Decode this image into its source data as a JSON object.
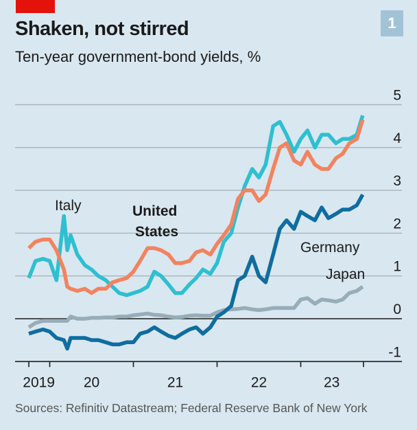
{
  "header": {
    "title": "Shaken, not stirred",
    "subtitle": "Ten-year government-bond yields, %",
    "chart_number": "1"
  },
  "footer": {
    "source": "Sources: Refinitiv Datastream; Federal Reserve Bank of New York"
  },
  "colors": {
    "background": "#d9e7f0",
    "tag": "#e3120b",
    "badge": "#a2c3d6",
    "grid": "#a9b4bb",
    "zero_line": "#1a1a1a",
    "united_states": "#f2835f",
    "italy": "#2ebfd1",
    "germany": "#0f6d9f",
    "japan": "#97adb8"
  },
  "chart_data": {
    "type": "line",
    "title": "Shaken, not stirred",
    "subtitle": "Ten-year government-bond yields, %",
    "xlabel": "",
    "ylabel": "%",
    "ylim": [
      -1,
      5
    ],
    "yticks": [
      5,
      4,
      3,
      2,
      1,
      0,
      -1
    ],
    "xlim": [
      2019.75,
      2023.8
    ],
    "xticks": [
      2019.75,
      2020.0,
      2021.0,
      2022.0,
      2023.0,
      2023.75
    ],
    "xtick_labels": [
      {
        "label": "2019",
        "at": 2019.87
      },
      {
        "label": "20",
        "at": 2020.5
      },
      {
        "label": "21",
        "at": 2021.5
      },
      {
        "label": "22",
        "at": 2022.5
      },
      {
        "label": "23",
        "at": 2023.37
      }
    ],
    "grid": true,
    "legend": "inline labels",
    "x": [
      2019.75,
      2019.83,
      2019.92,
      2020.0,
      2020.08,
      2020.17,
      2020.21,
      2020.25,
      2020.33,
      2020.42,
      2020.5,
      2020.58,
      2020.67,
      2020.75,
      2020.83,
      2020.92,
      2021.0,
      2021.08,
      2021.17,
      2021.25,
      2021.33,
      2021.42,
      2021.5,
      2021.58,
      2021.67,
      2021.75,
      2021.83,
      2021.92,
      2022.0,
      2022.08,
      2022.17,
      2022.25,
      2022.33,
      2022.42,
      2022.5,
      2022.58,
      2022.67,
      2022.75,
      2022.83,
      2022.92,
      2023.0,
      2023.08,
      2023.17,
      2023.25,
      2023.33,
      2023.42,
      2023.5,
      2023.58,
      2023.67,
      2023.74
    ],
    "series": [
      {
        "name": "United States",
        "label_bold": true,
        "values": [
          1.65,
          1.8,
          1.85,
          1.85,
          1.6,
          1.15,
          0.75,
          0.7,
          0.65,
          0.7,
          0.6,
          0.7,
          0.7,
          0.85,
          0.9,
          0.95,
          1.1,
          1.35,
          1.65,
          1.65,
          1.6,
          1.5,
          1.3,
          1.3,
          1.35,
          1.55,
          1.6,
          1.5,
          1.75,
          1.95,
          2.2,
          2.8,
          3.0,
          3.0,
          2.75,
          2.9,
          3.5,
          4.0,
          4.1,
          3.7,
          3.6,
          3.9,
          3.6,
          3.5,
          3.5,
          3.75,
          3.85,
          4.1,
          4.2,
          4.65
        ]
      },
      {
        "name": "Italy",
        "label_bold": false,
        "values": [
          0.95,
          1.35,
          1.4,
          1.35,
          0.9,
          2.4,
          1.6,
          1.95,
          1.5,
          1.25,
          1.15,
          1.0,
          0.9,
          0.75,
          0.6,
          0.55,
          0.6,
          0.65,
          0.75,
          1.1,
          1.0,
          0.8,
          0.6,
          0.6,
          0.8,
          0.95,
          1.15,
          1.05,
          1.3,
          1.8,
          2.0,
          2.6,
          3.1,
          3.5,
          3.3,
          3.6,
          4.5,
          4.6,
          4.3,
          3.9,
          4.2,
          4.4,
          4.0,
          4.3,
          4.3,
          4.1,
          4.2,
          4.2,
          4.3,
          4.75
        ]
      },
      {
        "name": "Germany",
        "label_bold": false,
        "values": [
          -0.35,
          -0.3,
          -0.25,
          -0.3,
          -0.45,
          -0.5,
          -0.7,
          -0.45,
          -0.45,
          -0.45,
          -0.5,
          -0.5,
          -0.55,
          -0.6,
          -0.6,
          -0.55,
          -0.55,
          -0.35,
          -0.3,
          -0.2,
          -0.3,
          -0.4,
          -0.45,
          -0.35,
          -0.25,
          -0.2,
          -0.35,
          -0.2,
          0.05,
          0.15,
          0.3,
          0.9,
          1.0,
          1.45,
          1.0,
          0.85,
          1.5,
          2.1,
          2.3,
          2.1,
          2.5,
          2.4,
          2.3,
          2.6,
          2.35,
          2.45,
          2.55,
          2.55,
          2.65,
          2.9
        ]
      },
      {
        "name": "Japan",
        "label_bold": false,
        "values": [
          -0.2,
          -0.1,
          -0.05,
          -0.05,
          -0.05,
          -0.05,
          -0.05,
          0.05,
          0.0,
          0.0,
          0.02,
          0.02,
          0.03,
          0.03,
          0.05,
          0.05,
          0.08,
          0.1,
          0.12,
          0.09,
          0.08,
          0.05,
          0.03,
          0.04,
          0.07,
          0.08,
          0.07,
          0.07,
          0.15,
          0.2,
          0.22,
          0.23,
          0.25,
          0.22,
          0.2,
          0.22,
          0.25,
          0.25,
          0.25,
          0.25,
          0.45,
          0.48,
          0.35,
          0.45,
          0.43,
          0.4,
          0.45,
          0.6,
          0.65,
          0.75
        ]
      }
    ],
    "annotations": [
      {
        "text": "Italy",
        "series": "Italy"
      },
      {
        "text": "United States",
        "series": "United States"
      },
      {
        "text": "Germany",
        "series": "Germany"
      },
      {
        "text": "Japan",
        "series": "Japan"
      }
    ]
  }
}
